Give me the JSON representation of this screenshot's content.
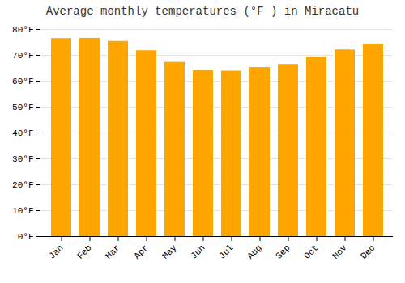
{
  "chart_data": {
    "type": "bar",
    "title": "Average monthly temperatures (°F ) in Miracatu",
    "categories": [
      "Jan",
      "Feb",
      "Mar",
      "Apr",
      "May",
      "Jun",
      "Jul",
      "Aug",
      "Sep",
      "Oct",
      "Nov",
      "Dec"
    ],
    "values": [
      76.5,
      76.6,
      75.4,
      71.8,
      67.3,
      64.2,
      63.9,
      65.3,
      66.5,
      69.3,
      72.1,
      74.3
    ],
    "color": "#FFA500",
    "ylim": [
      0,
      80
    ],
    "yticks": [
      {
        "value": 0,
        "label": "0°F"
      },
      {
        "value": 10,
        "label": "10°F"
      },
      {
        "value": 20,
        "label": "20°F"
      },
      {
        "value": 30,
        "label": "30°F"
      },
      {
        "value": 40,
        "label": "40°F"
      },
      {
        "value": 50,
        "label": "50°F"
      },
      {
        "value": 60,
        "label": "60°F"
      },
      {
        "value": 70,
        "label": "70°F"
      },
      {
        "value": 80,
        "label": "80°F"
      }
    ],
    "grid": true
  }
}
